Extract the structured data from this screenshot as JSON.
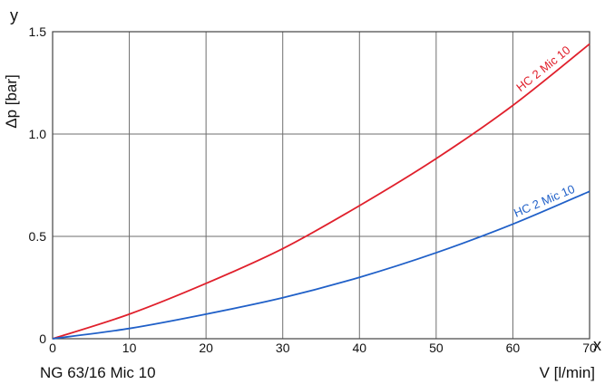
{
  "chart_data": {
    "type": "line",
    "title": "",
    "caption": "NG 63/16 Mic 10",
    "x_axis_letter": "x",
    "y_axis_letter": "y",
    "xlabel": "V [l/min]",
    "ylabel": "Δp [bar]",
    "xlim": [
      0,
      70
    ],
    "ylim": [
      0,
      1.5
    ],
    "x_ticks": [
      0,
      10,
      20,
      30,
      40,
      50,
      60,
      70
    ],
    "x_tick_labels": [
      "0",
      "10",
      "20",
      "30",
      "40",
      "50",
      "60",
      "70"
    ],
    "y_ticks": [
      0,
      0.5,
      1.0,
      1.5
    ],
    "y_tick_labels": [
      "0",
      "0.5",
      "1.0",
      "1.5"
    ],
    "grid": true,
    "legend": "none",
    "series": [
      {
        "name": "HC 2 Mic 10",
        "color": "#e0202c",
        "x": [
          0,
          10,
          20,
          30,
          40,
          50,
          60,
          70
        ],
        "y": [
          0,
          0.12,
          0.27,
          0.44,
          0.65,
          0.88,
          1.14,
          1.44
        ]
      },
      {
        "name": "HC 2 Mic 10",
        "color": "#2060c8",
        "x": [
          0,
          10,
          20,
          30,
          40,
          50,
          60,
          70
        ],
        "y": [
          0,
          0.05,
          0.12,
          0.2,
          0.3,
          0.42,
          0.56,
          0.72
        ]
      }
    ]
  }
}
